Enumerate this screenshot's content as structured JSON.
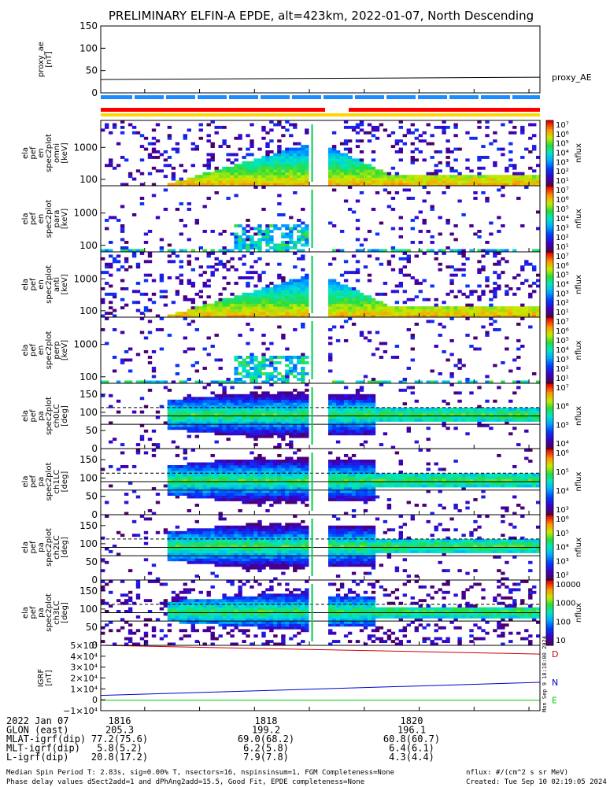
{
  "title": "PRELIMINARY ELFIN-A EPDE, alt=423km, 2022-01-07, North Descending",
  "colors": {
    "bar_blue": "#1a8cff",
    "bar_red": "#ff0000",
    "bar_yellow": "#ffd700",
    "grf_d": "#cc0000",
    "grf_n": "#0000cc",
    "grf_e": "#00cc00"
  },
  "chart_data": {
    "type": "heatmap",
    "time_ticks": [
      "1816",
      "1818",
      "1820"
    ],
    "panels": [
      {
        "id": "proxy_ae",
        "type": "line",
        "ylabel": [
          "proxy_ae",
          "[nT]"
        ],
        "yticks": [
          "150",
          "100",
          "50",
          "0"
        ],
        "ylim": [
          0,
          150
        ],
        "series": [
          {
            "name": "proxy_AE",
            "x": [
              1815.2,
              1823.2
            ],
            "y": [
              30,
              35
            ]
          }
        ]
      },
      {
        "id": "en_omni",
        "ylabel": [
          "ela",
          "pef",
          "en",
          "spec2plot",
          "omni",
          "[keV]"
        ],
        "yticks": [
          "1000",
          "100"
        ],
        "scale": "log",
        "ylim": [
          63,
          7000
        ],
        "cbar": [
          "10⁷",
          "10⁶",
          "10⁵",
          "10⁴",
          "10³",
          "10²",
          "10¹"
        ],
        "cbar_label": "nflux"
      },
      {
        "id": "en_para",
        "ylabel": [
          "ela",
          "pef",
          "en",
          "spec2plot",
          "para",
          "[keV]"
        ],
        "yticks": [
          "1000",
          "100"
        ],
        "scale": "log",
        "ylim": [
          63,
          7000
        ],
        "cbar": [
          "10⁷",
          "10⁶",
          "10⁵",
          "10⁴",
          "10³",
          "10²",
          "10¹"
        ],
        "cbar_label": "nflux"
      },
      {
        "id": "en_anti",
        "ylabel": [
          "ela",
          "pef",
          "en",
          "spec2plot",
          "anti",
          "[keV]"
        ],
        "yticks": [
          "1000",
          "100"
        ],
        "scale": "log",
        "ylim": [
          63,
          7000
        ],
        "cbar": [
          "10⁷",
          "10⁶",
          "10⁵",
          "10⁴",
          "10³",
          "10²",
          "10¹"
        ],
        "cbar_label": "nflux"
      },
      {
        "id": "en_perp",
        "ylabel": [
          "ela",
          "pef",
          "en",
          "spec2plot",
          "perp",
          "[keV]"
        ],
        "yticks": [
          "1000",
          "100"
        ],
        "scale": "log",
        "ylim": [
          63,
          7000
        ],
        "cbar": [
          "10⁷",
          "10⁶",
          "10⁵",
          "10⁴",
          "10³",
          "10²",
          "10¹"
        ],
        "cbar_label": "nflux"
      },
      {
        "id": "pa_ch0",
        "ylabel": [
          "ela",
          "pef",
          "pa",
          "spec2plot",
          "ch0LC",
          "[deg]"
        ],
        "yticks": [
          "150",
          "100",
          "50",
          "0"
        ],
        "ylim": [
          0,
          180
        ],
        "cbar": [
          "10⁷",
          "10⁶",
          "10⁵",
          "10⁴"
        ],
        "cbar_label": "nflux"
      },
      {
        "id": "pa_ch1",
        "ylabel": [
          "ela",
          "pef",
          "pa",
          "spec2plot",
          "ch1LC",
          "[deg]"
        ],
        "yticks": [
          "150",
          "100",
          "50",
          "0"
        ],
        "ylim": [
          0,
          180
        ],
        "cbar": [
          "10⁶",
          "10⁵",
          "10⁴",
          "10³"
        ],
        "cbar_label": "nflux"
      },
      {
        "id": "pa_ch2",
        "ylabel": [
          "ela",
          "pef",
          "pa",
          "spec2plot",
          "ch2LC",
          "[deg]"
        ],
        "yticks": [
          "150",
          "100",
          "50",
          "0"
        ],
        "ylim": [
          0,
          180
        ],
        "cbar": [
          "10⁶",
          "10⁵",
          "10⁴",
          "10³",
          "10²"
        ],
        "cbar_label": "nflux"
      },
      {
        "id": "pa_ch3",
        "ylabel": [
          "ela",
          "pef",
          "pa",
          "spec2plot",
          "ch3LC",
          "[deg]"
        ],
        "yticks": [
          "150",
          "100",
          "50",
          "0"
        ],
        "ylim": [
          0,
          180
        ],
        "cbar": [
          "10000",
          "1000",
          "100",
          "10"
        ],
        "cbar_label": "nflux"
      },
      {
        "id": "igrf",
        "type": "line",
        "ylabel": [
          "IGRF",
          "[nT]"
        ],
        "yticks": [
          "5×10⁴",
          "4×10⁴",
          "3×10⁴",
          "2×10⁴",
          "1×10⁴",
          "0",
          "−1×10⁴"
        ],
        "ylim": [
          -10000,
          50000
        ],
        "series": [
          {
            "name": "D",
            "x": [
              1815.2,
              1823.2
            ],
            "y": [
              50000,
              42000
            ]
          },
          {
            "name": "N",
            "x": [
              1815.2,
              1823.2
            ],
            "y": [
              4000,
              16000
            ]
          },
          {
            "name": "E",
            "x": [
              1815.2,
              1823.2
            ],
            "y": [
              -400,
              -400
            ]
          }
        ]
      }
    ]
  },
  "ephemeris": {
    "rows": [
      {
        "label": "2022 Jan 07",
        "v1": "1816",
        "v2": "1818",
        "v3": "1820"
      },
      {
        "label": "GLON (east)",
        "v1": "205.3",
        "v2": "199.2",
        "v3": "196.1"
      },
      {
        "label": "MLAT-igrf(dip)",
        "v1": "77.2(75.6)",
        "v2": "69.0(68.2)",
        "v3": "60.8(60.7)"
      },
      {
        "label": "MLT-igrf(dip)",
        "v1": "5.8(5.2)",
        "v2": "6.2(5.8)",
        "v3": "6.4(6.1)"
      },
      {
        "label": "L-igrf(dip)",
        "v1": "20.8(17.2)",
        "v2": "7.9(7.8)",
        "v3": "4.3(4.4)"
      }
    ]
  },
  "footer": {
    "line1": "Median Spin Period T: 2.83s, sig=0.00% T, nsectors=16, nspinsinsum=1, FGM Completeness=None",
    "line2": "Phase delay values dSect2add=1 and dPhAng2add=15.5, Good Fit, EPDE completeness=None",
    "units": "nflux: #/(cm^2 s sr MeV)",
    "created": "Created: Tue Sep 10 02:19:05 2024",
    "side_stamp": "Mon Sep 9 18:18:00 2024"
  }
}
